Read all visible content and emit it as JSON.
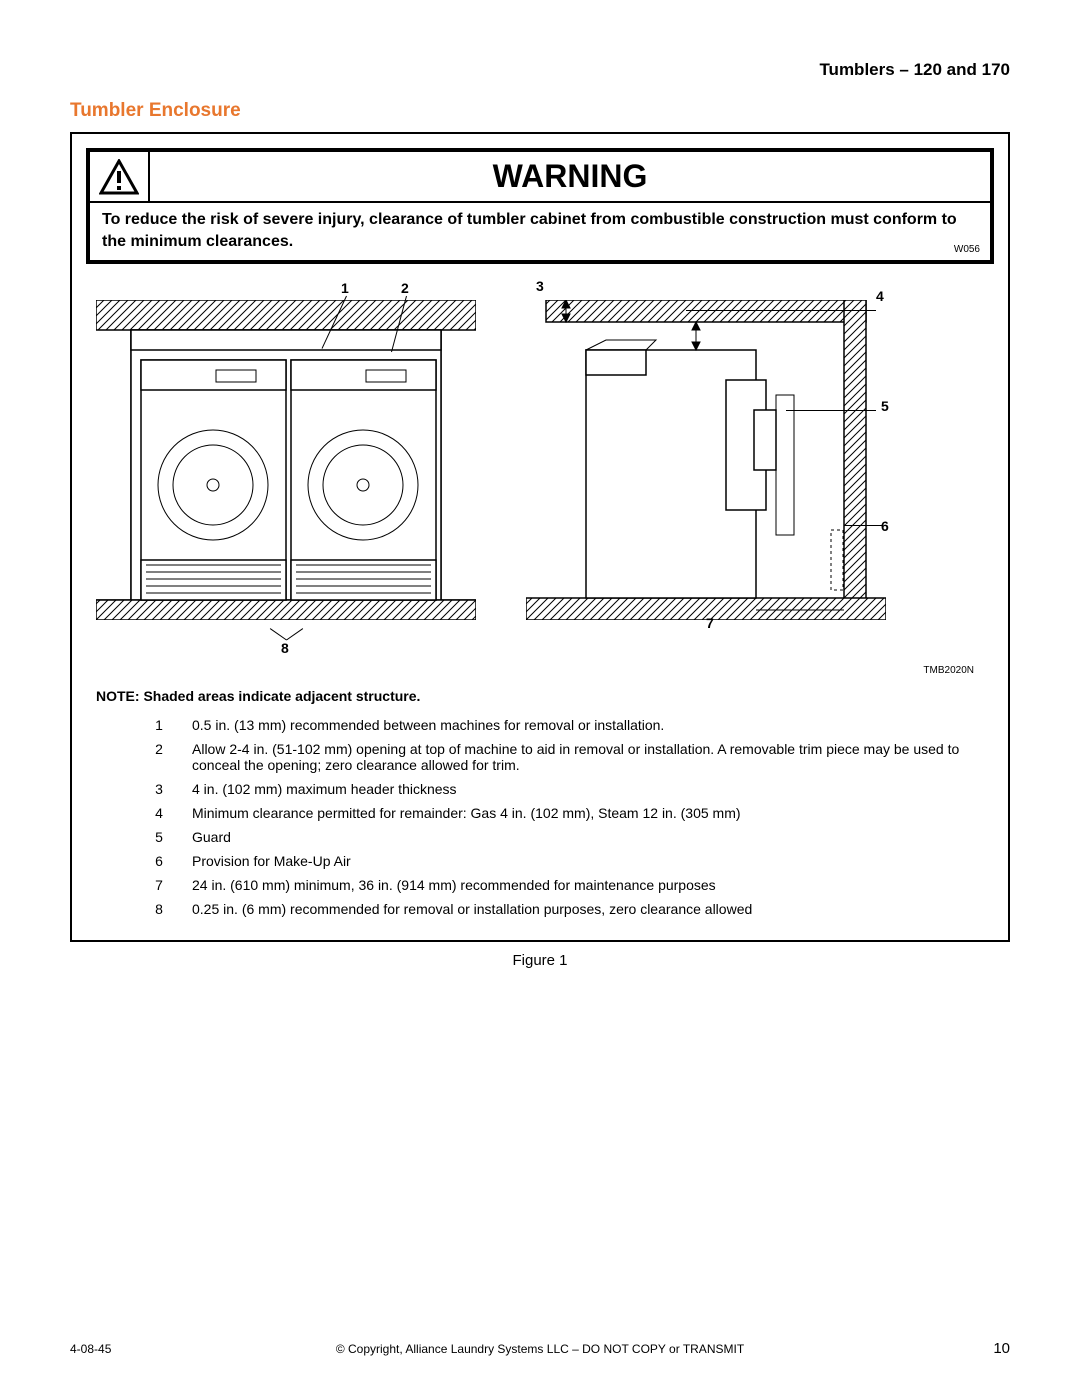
{
  "header": {
    "right": "Tumblers – 120 and 170"
  },
  "section": {
    "title": "Tumbler Enclosure"
  },
  "warning": {
    "title": "WARNING",
    "body": "To reduce the risk of severe injury, clearance of tumbler cabinet from combustible construction must conform to the minimum clearances.",
    "code": "W056"
  },
  "diagram": {
    "code": "TMB2020N",
    "callouts": {
      "1": "1",
      "2": "2",
      "3": "3",
      "4": "4",
      "5": "5",
      "6": "6",
      "7": "7",
      "8": "8"
    }
  },
  "note": "NOTE: Shaded areas indicate adjacent structure.",
  "legend": [
    {
      "n": "1",
      "t": "0.5 in. (13 mm) recommended between machines for removal or installation."
    },
    {
      "n": "2",
      "t": "Allow 2-4 in. (51-102 mm) opening at top of machine to aid in removal or installation. A removable trim piece may be used to conceal the opening; zero clearance allowed for trim."
    },
    {
      "n": "3",
      "t": "4 in. (102 mm) maximum header thickness"
    },
    {
      "n": "4",
      "t": "Minimum clearance permitted for remainder: Gas 4 in. (102 mm), Steam 12 in. (305 mm)"
    },
    {
      "n": "5",
      "t": "Guard"
    },
    {
      "n": "6",
      "t": "Provision for Make-Up Air"
    },
    {
      "n": "7",
      "t": "24 in. (610 mm) minimum, 36 in. (914 mm) recommended for maintenance purposes"
    },
    {
      "n": "8",
      "t": "0.25 in. (6 mm) recommended for removal or installation purposes, zero clearance allowed"
    }
  ],
  "figure_caption": "Figure 1",
  "footer": {
    "left": "4-08-45",
    "center": "© Copyright, Alliance Laundry Systems LLC – DO NOT COPY or TRANSMIT",
    "page": "10"
  },
  "style": {
    "accent_color": "#e8772e",
    "text_color": "#000000",
    "background": "#ffffff",
    "title_fontsize_pt": 14,
    "body_fontsize_pt": 11
  }
}
